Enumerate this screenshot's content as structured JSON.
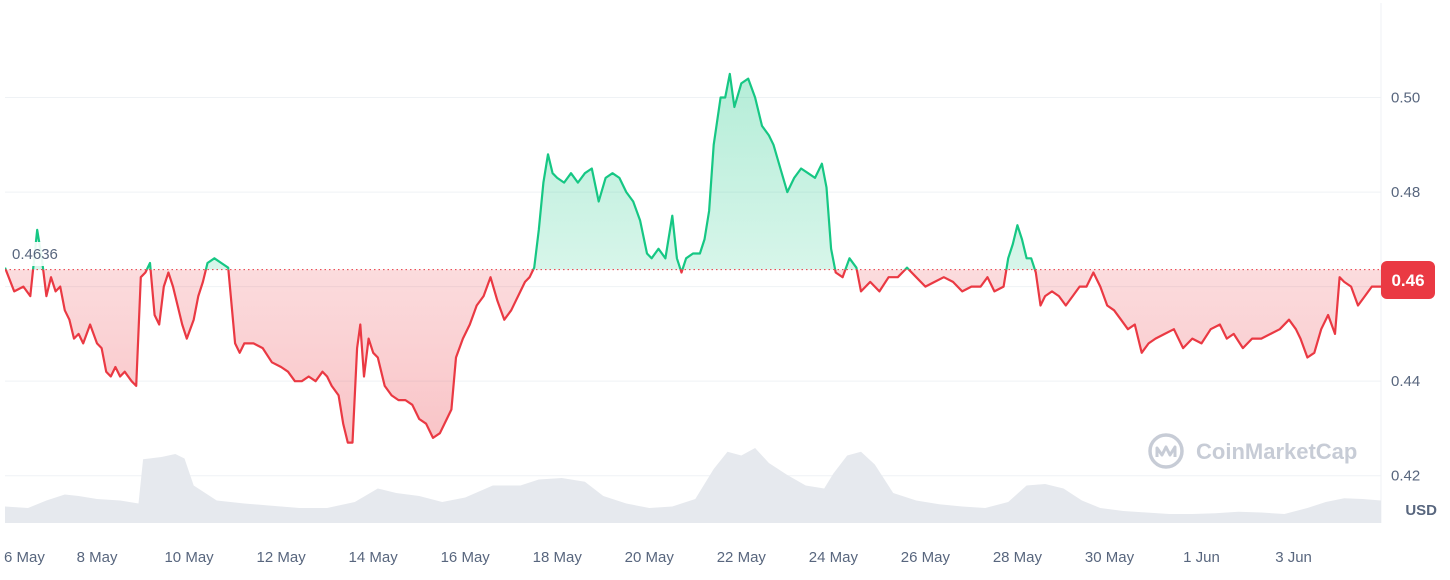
{
  "chart_data": {
    "type": "area",
    "baseline": 0.4636,
    "baseline_label": "0.4636",
    "current_price_label": "0.46",
    "currency": "USD",
    "watermark": "CoinMarketCap",
    "ylim": [
      0.41,
      0.52
    ],
    "y_ticks": [
      0.42,
      0.44,
      0.46,
      0.48,
      0.5
    ],
    "y_tick_labels": [
      "0.42",
      "0.44",
      "0.46",
      "0.48",
      "0.50"
    ],
    "x_tick_labels": [
      "6 May",
      "8 May",
      "10 May",
      "12 May",
      "14 May",
      "16 May",
      "18 May",
      "20 May",
      "22 May",
      "24 May",
      "26 May",
      "28 May",
      "30 May",
      "1 Jun",
      "3 Jun"
    ],
    "x_tick_days": [
      0,
      2,
      4,
      6,
      8,
      10,
      12,
      14,
      16,
      18,
      20,
      22,
      24,
      26,
      28
    ],
    "x_range_days": [
      0,
      29.9
    ],
    "price_series": [
      [
        0.0,
        0.464
      ],
      [
        0.2,
        0.459
      ],
      [
        0.4,
        0.46
      ],
      [
        0.55,
        0.458
      ],
      [
        0.7,
        0.472
      ],
      [
        0.8,
        0.466
      ],
      [
        0.9,
        0.458
      ],
      [
        1.0,
        0.462
      ],
      [
        1.1,
        0.459
      ],
      [
        1.2,
        0.46
      ],
      [
        1.3,
        0.455
      ],
      [
        1.4,
        0.453
      ],
      [
        1.5,
        0.449
      ],
      [
        1.6,
        0.45
      ],
      [
        1.7,
        0.448
      ],
      [
        1.85,
        0.452
      ],
      [
        2.0,
        0.448
      ],
      [
        2.1,
        0.447
      ],
      [
        2.2,
        0.442
      ],
      [
        2.3,
        0.441
      ],
      [
        2.4,
        0.443
      ],
      [
        2.5,
        0.441
      ],
      [
        2.6,
        0.442
      ],
      [
        2.75,
        0.44
      ],
      [
        2.85,
        0.439
      ],
      [
        2.95,
        0.462
      ],
      [
        3.05,
        0.463
      ],
      [
        3.15,
        0.465
      ],
      [
        3.25,
        0.454
      ],
      [
        3.35,
        0.452
      ],
      [
        3.45,
        0.46
      ],
      [
        3.55,
        0.463
      ],
      [
        3.65,
        0.46
      ],
      [
        3.75,
        0.456
      ],
      [
        3.85,
        0.452
      ],
      [
        3.95,
        0.449
      ],
      [
        4.1,
        0.453
      ],
      [
        4.2,
        0.458
      ],
      [
        4.3,
        0.461
      ],
      [
        4.4,
        0.465
      ],
      [
        4.55,
        0.466
      ],
      [
        4.7,
        0.465
      ],
      [
        4.85,
        0.464
      ],
      [
        5.0,
        0.448
      ],
      [
        5.1,
        0.446
      ],
      [
        5.2,
        0.448
      ],
      [
        5.4,
        0.448
      ],
      [
        5.6,
        0.447
      ],
      [
        5.8,
        0.444
      ],
      [
        6.0,
        0.443
      ],
      [
        6.15,
        0.442
      ],
      [
        6.3,
        0.44
      ],
      [
        6.45,
        0.44
      ],
      [
        6.6,
        0.441
      ],
      [
        6.75,
        0.44
      ],
      [
        6.9,
        0.442
      ],
      [
        7.0,
        0.441
      ],
      [
        7.1,
        0.439
      ],
      [
        7.25,
        0.437
      ],
      [
        7.35,
        0.431
      ],
      [
        7.45,
        0.427
      ],
      [
        7.55,
        0.427
      ],
      [
        7.65,
        0.447
      ],
      [
        7.72,
        0.452
      ],
      [
        7.8,
        0.441
      ],
      [
        7.9,
        0.449
      ],
      [
        8.0,
        0.446
      ],
      [
        8.1,
        0.445
      ],
      [
        8.25,
        0.439
      ],
      [
        8.4,
        0.437
      ],
      [
        8.55,
        0.436
      ],
      [
        8.7,
        0.436
      ],
      [
        8.85,
        0.435
      ],
      [
        9.0,
        0.432
      ],
      [
        9.15,
        0.431
      ],
      [
        9.3,
        0.428
      ],
      [
        9.45,
        0.429
      ],
      [
        9.6,
        0.432
      ],
      [
        9.7,
        0.434
      ],
      [
        9.8,
        0.445
      ],
      [
        9.95,
        0.449
      ],
      [
        10.1,
        0.452
      ],
      [
        10.25,
        0.456
      ],
      [
        10.4,
        0.458
      ],
      [
        10.55,
        0.462
      ],
      [
        10.7,
        0.457
      ],
      [
        10.85,
        0.453
      ],
      [
        11.0,
        0.455
      ],
      [
        11.1,
        0.457
      ],
      [
        11.2,
        0.459
      ],
      [
        11.3,
        0.461
      ],
      [
        11.4,
        0.462
      ],
      [
        11.5,
        0.464
      ],
      [
        11.6,
        0.472
      ],
      [
        11.7,
        0.482
      ],
      [
        11.8,
        0.488
      ],
      [
        11.9,
        0.484
      ],
      [
        12.0,
        0.483
      ],
      [
        12.15,
        0.482
      ],
      [
        12.3,
        0.484
      ],
      [
        12.45,
        0.482
      ],
      [
        12.6,
        0.484
      ],
      [
        12.75,
        0.485
      ],
      [
        12.9,
        0.478
      ],
      [
        13.05,
        0.483
      ],
      [
        13.2,
        0.484
      ],
      [
        13.35,
        0.483
      ],
      [
        13.5,
        0.48
      ],
      [
        13.65,
        0.478
      ],
      [
        13.8,
        0.474
      ],
      [
        13.95,
        0.467
      ],
      [
        14.05,
        0.466
      ],
      [
        14.2,
        0.468
      ],
      [
        14.35,
        0.466
      ],
      [
        14.5,
        0.475
      ],
      [
        14.6,
        0.466
      ],
      [
        14.7,
        0.463
      ],
      [
        14.8,
        0.466
      ],
      [
        14.95,
        0.467
      ],
      [
        15.1,
        0.467
      ],
      [
        15.2,
        0.47
      ],
      [
        15.3,
        0.476
      ],
      [
        15.4,
        0.49
      ],
      [
        15.55,
        0.5
      ],
      [
        15.65,
        0.5
      ],
      [
        15.75,
        0.505
      ],
      [
        15.85,
        0.498
      ],
      [
        16.0,
        0.503
      ],
      [
        16.15,
        0.504
      ],
      [
        16.3,
        0.5
      ],
      [
        16.45,
        0.494
      ],
      [
        16.6,
        0.492
      ],
      [
        16.7,
        0.49
      ],
      [
        16.85,
        0.485
      ],
      [
        17.0,
        0.48
      ],
      [
        17.15,
        0.483
      ],
      [
        17.3,
        0.485
      ],
      [
        17.45,
        0.484
      ],
      [
        17.6,
        0.483
      ],
      [
        17.75,
        0.486
      ],
      [
        17.85,
        0.481
      ],
      [
        17.95,
        0.468
      ],
      [
        18.05,
        0.463
      ],
      [
        18.2,
        0.462
      ],
      [
        18.35,
        0.466
      ],
      [
        18.5,
        0.464
      ],
      [
        18.6,
        0.459
      ],
      [
        18.8,
        0.461
      ],
      [
        19.0,
        0.459
      ],
      [
        19.2,
        0.462
      ],
      [
        19.4,
        0.462
      ],
      [
        19.6,
        0.464
      ],
      [
        19.8,
        0.462
      ],
      [
        20.0,
        0.46
      ],
      [
        20.2,
        0.461
      ],
      [
        20.4,
        0.462
      ],
      [
        20.6,
        0.461
      ],
      [
        20.8,
        0.459
      ],
      [
        21.0,
        0.46
      ],
      [
        21.2,
        0.46
      ],
      [
        21.35,
        0.462
      ],
      [
        21.5,
        0.459
      ],
      [
        21.7,
        0.46
      ],
      [
        21.8,
        0.466
      ],
      [
        21.9,
        0.469
      ],
      [
        22.0,
        0.473
      ],
      [
        22.1,
        0.47
      ],
      [
        22.2,
        0.466
      ],
      [
        22.3,
        0.466
      ],
      [
        22.4,
        0.463
      ],
      [
        22.5,
        0.456
      ],
      [
        22.6,
        0.458
      ],
      [
        22.75,
        0.459
      ],
      [
        22.9,
        0.458
      ],
      [
        23.05,
        0.456
      ],
      [
        23.2,
        0.458
      ],
      [
        23.35,
        0.46
      ],
      [
        23.5,
        0.46
      ],
      [
        23.65,
        0.463
      ],
      [
        23.8,
        0.46
      ],
      [
        23.95,
        0.456
      ],
      [
        24.1,
        0.455
      ],
      [
        24.25,
        0.453
      ],
      [
        24.4,
        0.451
      ],
      [
        24.55,
        0.452
      ],
      [
        24.7,
        0.446
      ],
      [
        24.85,
        0.448
      ],
      [
        25.0,
        0.449
      ],
      [
        25.2,
        0.45
      ],
      [
        25.4,
        0.451
      ],
      [
        25.6,
        0.447
      ],
      [
        25.8,
        0.449
      ],
      [
        26.0,
        0.448
      ],
      [
        26.2,
        0.451
      ],
      [
        26.4,
        0.452
      ],
      [
        26.55,
        0.449
      ],
      [
        26.7,
        0.45
      ],
      [
        26.9,
        0.447
      ],
      [
        27.1,
        0.449
      ],
      [
        27.3,
        0.449
      ],
      [
        27.5,
        0.45
      ],
      [
        27.7,
        0.451
      ],
      [
        27.9,
        0.453
      ],
      [
        28.05,
        0.451
      ],
      [
        28.15,
        0.449
      ],
      [
        28.3,
        0.445
      ],
      [
        28.45,
        0.446
      ],
      [
        28.6,
        0.451
      ],
      [
        28.75,
        0.454
      ],
      [
        28.9,
        0.45
      ],
      [
        29.0,
        0.462
      ],
      [
        29.1,
        0.461
      ],
      [
        29.25,
        0.46
      ],
      [
        29.4,
        0.456
      ],
      [
        29.55,
        0.458
      ],
      [
        29.7,
        0.46
      ],
      [
        29.9,
        0.46
      ]
    ],
    "volume_series": [
      [
        0.0,
        0.22
      ],
      [
        0.5,
        0.2
      ],
      [
        0.9,
        0.3
      ],
      [
        1.3,
        0.38
      ],
      [
        1.6,
        0.36
      ],
      [
        2.0,
        0.32
      ],
      [
        2.5,
        0.3
      ],
      [
        2.9,
        0.26
      ],
      [
        3.0,
        0.85
      ],
      [
        3.4,
        0.88
      ],
      [
        3.7,
        0.92
      ],
      [
        3.9,
        0.86
      ],
      [
        4.1,
        0.5
      ],
      [
        4.6,
        0.3
      ],
      [
        5.2,
        0.26
      ],
      [
        5.8,
        0.23
      ],
      [
        6.4,
        0.2
      ],
      [
        7.0,
        0.2
      ],
      [
        7.6,
        0.28
      ],
      [
        8.1,
        0.46
      ],
      [
        8.5,
        0.4
      ],
      [
        9.0,
        0.36
      ],
      [
        9.5,
        0.28
      ],
      [
        10.0,
        0.34
      ],
      [
        10.6,
        0.5
      ],
      [
        11.2,
        0.5
      ],
      [
        11.6,
        0.58
      ],
      [
        12.1,
        0.6
      ],
      [
        12.6,
        0.55
      ],
      [
        13.0,
        0.36
      ],
      [
        13.5,
        0.26
      ],
      [
        14.0,
        0.2
      ],
      [
        14.5,
        0.22
      ],
      [
        15.0,
        0.32
      ],
      [
        15.4,
        0.72
      ],
      [
        15.7,
        0.95
      ],
      [
        16.0,
        0.9
      ],
      [
        16.3,
        1.0
      ],
      [
        16.6,
        0.8
      ],
      [
        17.0,
        0.64
      ],
      [
        17.4,
        0.5
      ],
      [
        17.8,
        0.46
      ],
      [
        18.0,
        0.66
      ],
      [
        18.3,
        0.9
      ],
      [
        18.6,
        0.95
      ],
      [
        18.9,
        0.78
      ],
      [
        19.3,
        0.4
      ],
      [
        19.8,
        0.3
      ],
      [
        20.3,
        0.25
      ],
      [
        20.8,
        0.22
      ],
      [
        21.3,
        0.2
      ],
      [
        21.8,
        0.28
      ],
      [
        22.2,
        0.5
      ],
      [
        22.6,
        0.52
      ],
      [
        23.0,
        0.46
      ],
      [
        23.4,
        0.3
      ],
      [
        23.8,
        0.2
      ],
      [
        24.3,
        0.16
      ],
      [
        24.8,
        0.14
      ],
      [
        25.3,
        0.12
      ],
      [
        25.8,
        0.12
      ],
      [
        26.3,
        0.13
      ],
      [
        26.8,
        0.15
      ],
      [
        27.3,
        0.14
      ],
      [
        27.8,
        0.12
      ],
      [
        28.3,
        0.2
      ],
      [
        28.7,
        0.28
      ],
      [
        29.1,
        0.33
      ],
      [
        29.5,
        0.32
      ],
      [
        29.9,
        0.3
      ]
    ],
    "colors": {
      "up": "#16c784",
      "down": "#ea3943",
      "grid": "#eff2f5",
      "axis_text": "#58667e",
      "volume": "#e6e9ee",
      "watermark": "#c7ccd6"
    }
  }
}
